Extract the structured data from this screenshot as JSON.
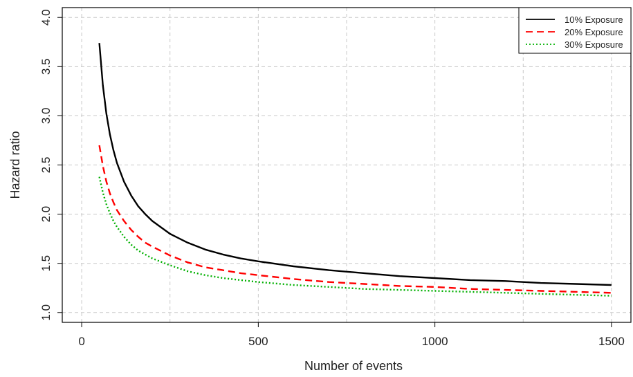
{
  "chart_data": {
    "type": "line",
    "title": "",
    "xlabel": "Number of events",
    "ylabel": "Hazard ratio",
    "xlim": [
      -55,
      1555
    ],
    "ylim": [
      0.9,
      4.1
    ],
    "xticks": [
      0,
      500,
      1000,
      1500
    ],
    "xtick_labels": [
      "0",
      "500",
      "1000",
      "1500"
    ],
    "yticks": [
      1.0,
      1.5,
      2.0,
      2.5,
      3.0,
      3.5,
      4.0
    ],
    "ytick_labels": [
      "1.0",
      "1.5",
      "2.0",
      "2.5",
      "3.0",
      "3.5",
      "4.0"
    ],
    "xgrid": [
      0,
      250,
      500,
      750,
      1000,
      1250,
      1500
    ],
    "grid": true,
    "legend_position": "top-right",
    "series": [
      {
        "name": "10% Exposure",
        "color": "#000000",
        "style": "solid",
        "x": [
          50,
          60,
          70,
          80,
          90,
          100,
          120,
          140,
          160,
          180,
          200,
          250,
          300,
          350,
          400,
          450,
          500,
          600,
          700,
          800,
          900,
          1000,
          1100,
          1200,
          1300,
          1400,
          1500
        ],
        "y": [
          3.74,
          3.31,
          3.02,
          2.81,
          2.65,
          2.52,
          2.33,
          2.19,
          2.08,
          2.0,
          1.93,
          1.8,
          1.71,
          1.64,
          1.59,
          1.55,
          1.52,
          1.47,
          1.43,
          1.4,
          1.37,
          1.35,
          1.33,
          1.32,
          1.3,
          1.29,
          1.28
        ]
      },
      {
        "name": "20% Exposure",
        "color": "#ff0000",
        "style": "dashed",
        "x": [
          50,
          60,
          70,
          80,
          90,
          100,
          120,
          140,
          160,
          180,
          200,
          250,
          300,
          350,
          400,
          450,
          500,
          600,
          700,
          800,
          900,
          1000,
          1100,
          1200,
          1300,
          1400,
          1500
        ],
        "y": [
          2.7,
          2.49,
          2.33,
          2.21,
          2.12,
          2.04,
          1.93,
          1.84,
          1.77,
          1.71,
          1.67,
          1.58,
          1.51,
          1.46,
          1.43,
          1.4,
          1.38,
          1.34,
          1.31,
          1.29,
          1.27,
          1.26,
          1.24,
          1.23,
          1.22,
          1.21,
          1.2
        ]
      },
      {
        "name": "30% Exposure",
        "color": "#00b000",
        "style": "dotted",
        "x": [
          50,
          60,
          70,
          80,
          90,
          100,
          120,
          140,
          160,
          180,
          200,
          250,
          300,
          350,
          400,
          450,
          500,
          600,
          700,
          800,
          900,
          1000,
          1100,
          1200,
          1300,
          1400,
          1500
        ],
        "y": [
          2.38,
          2.22,
          2.1,
          2.01,
          1.93,
          1.87,
          1.77,
          1.69,
          1.63,
          1.59,
          1.55,
          1.48,
          1.42,
          1.38,
          1.35,
          1.33,
          1.31,
          1.28,
          1.26,
          1.24,
          1.23,
          1.22,
          1.21,
          1.2,
          1.19,
          1.18,
          1.17
        ]
      }
    ]
  }
}
